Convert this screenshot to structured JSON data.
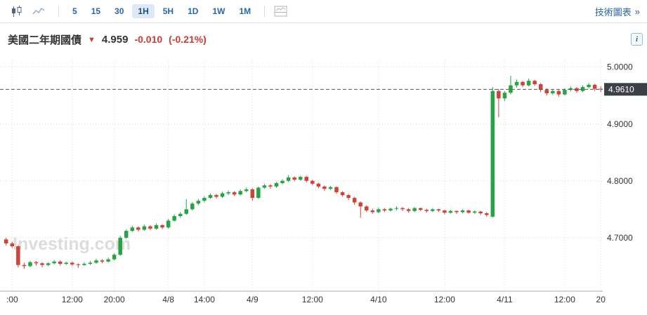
{
  "toolbar": {
    "chart_type_candle_icon": "candlestick-chart-icon",
    "chart_type_line_icon": "line-chart-icon",
    "panel_icon": "chart-panel-icon",
    "intervals": [
      {
        "label": "5",
        "selected": false
      },
      {
        "label": "15",
        "selected": false
      },
      {
        "label": "30",
        "selected": false
      },
      {
        "label": "1H",
        "selected": true
      },
      {
        "label": "5H",
        "selected": false
      },
      {
        "label": "1D",
        "selected": false
      },
      {
        "label": "1W",
        "selected": false
      },
      {
        "label": "1M",
        "selected": false
      }
    ],
    "tech_chart_link": "技術圖表",
    "tech_chart_arrow": "»"
  },
  "quote": {
    "name": "美國二年期國債",
    "direction_arrow": "▼",
    "price": "4.959",
    "change": "-0.010",
    "change_percent": "(-0.21%)",
    "info_icon": "i"
  },
  "watermark": "Investing.com",
  "chart_data": {
    "type": "candlestick",
    "title": "美國二年期國債",
    "interval": "1H",
    "grid": true,
    "ylim": [
      4.606,
      5.012
    ],
    "y_ticks": [
      {
        "value": 5.0,
        "label": "5.0000"
      },
      {
        "value": 4.9,
        "label": "4.9000"
      },
      {
        "value": 4.8,
        "label": "4.8000"
      },
      {
        "value": 4.7,
        "label": "4.7000"
      }
    ],
    "current_price": {
      "value": 4.961,
      "label": "4.9610"
    },
    "x_ticks": [
      {
        "index": 1,
        "label": ":00"
      },
      {
        "index": 11,
        "label": "12:00"
      },
      {
        "index": 18,
        "label": "20:00"
      },
      {
        "index": 27,
        "label": "4/8"
      },
      {
        "index": 33,
        "label": "14:00"
      },
      {
        "index": 41,
        "label": "4/9"
      },
      {
        "index": 51,
        "label": "12:00"
      },
      {
        "index": 62,
        "label": "4/10"
      },
      {
        "index": 73,
        "label": "12:00"
      },
      {
        "index": 83,
        "label": "4/11"
      },
      {
        "index": 93,
        "label": "12:00"
      },
      {
        "index": 99,
        "label": "20"
      }
    ],
    "colors": {
      "up": "#27a344",
      "down": "#cf4238",
      "grid": "#d9d9d9",
      "axis_text": "#333333",
      "axis_line": "#aaaaaa",
      "price_line": "#555555",
      "price_tag_bg": "#3d4147",
      "price_tag_text": "#ffffff",
      "watermark": "#dcdcdc"
    },
    "candles": [
      [
        4.697,
        4.7,
        4.686,
        4.69
      ],
      [
        4.69,
        4.693,
        4.682,
        4.685
      ],
      [
        4.685,
        4.687,
        4.648,
        4.652
      ],
      [
        4.652,
        4.656,
        4.645,
        4.65
      ],
      [
        4.65,
        4.659,
        4.648,
        4.657
      ],
      [
        4.657,
        4.659,
        4.651,
        4.655
      ],
      [
        4.655,
        4.657,
        4.648,
        4.652
      ],
      [
        4.652,
        4.657,
        4.65,
        4.655
      ],
      [
        4.655,
        4.661,
        4.653,
        4.658
      ],
      [
        4.658,
        4.66,
        4.651,
        4.654
      ],
      [
        4.654,
        4.658,
        4.652,
        4.656
      ],
      [
        4.656,
        4.658,
        4.65,
        4.653
      ],
      [
        4.653,
        4.655,
        4.647,
        4.652
      ],
      [
        4.652,
        4.657,
        4.65,
        4.654
      ],
      [
        4.654,
        4.659,
        4.652,
        4.656
      ],
      [
        4.656,
        4.663,
        4.654,
        4.66
      ],
      [
        4.66,
        4.662,
        4.655,
        4.658
      ],
      [
        4.658,
        4.665,
        4.656,
        4.662
      ],
      [
        4.662,
        4.673,
        4.66,
        4.67
      ],
      [
        4.67,
        4.703,
        4.668,
        4.7
      ],
      [
        4.7,
        4.715,
        4.698,
        4.712
      ],
      [
        4.712,
        4.721,
        4.71,
        4.718
      ],
      [
        4.718,
        4.72,
        4.711,
        4.714
      ],
      [
        4.714,
        4.723,
        4.712,
        4.72
      ],
      [
        4.72,
        4.722,
        4.713,
        4.716
      ],
      [
        4.716,
        4.725,
        4.714,
        4.722
      ],
      [
        4.722,
        4.724,
        4.715,
        4.718
      ],
      [
        4.718,
        4.733,
        4.716,
        4.73
      ],
      [
        4.73,
        4.741,
        4.728,
        4.738
      ],
      [
        4.738,
        4.745,
        4.735,
        4.742
      ],
      [
        4.742,
        4.768,
        4.74,
        4.75
      ],
      [
        4.75,
        4.763,
        4.748,
        4.76
      ],
      [
        4.76,
        4.768,
        4.757,
        4.765
      ],
      [
        4.765,
        4.773,
        4.762,
        4.77
      ],
      [
        4.77,
        4.778,
        4.768,
        4.775
      ],
      [
        4.775,
        4.777,
        4.769,
        4.772
      ],
      [
        4.772,
        4.781,
        4.77,
        4.778
      ],
      [
        4.778,
        4.783,
        4.775,
        4.78
      ],
      [
        4.78,
        4.782,
        4.773,
        4.776
      ],
      [
        4.776,
        4.785,
        4.774,
        4.782
      ],
      [
        4.782,
        4.788,
        4.78,
        4.785
      ],
      [
        4.785,
        4.787,
        4.765,
        4.77
      ],
      [
        4.77,
        4.79,
        4.768,
        4.788
      ],
      [
        4.788,
        4.795,
        4.786,
        4.792
      ],
      [
        4.792,
        4.794,
        4.786,
        4.79
      ],
      [
        4.79,
        4.798,
        4.788,
        4.796
      ],
      [
        4.796,
        4.803,
        4.794,
        4.8
      ],
      [
        4.8,
        4.81,
        4.798,
        4.806
      ],
      [
        4.806,
        4.808,
        4.799,
        4.802
      ],
      [
        4.802,
        4.809,
        4.8,
        4.807
      ],
      [
        4.807,
        4.809,
        4.797,
        4.8
      ],
      [
        4.8,
        4.802,
        4.792,
        4.795
      ],
      [
        4.795,
        4.797,
        4.787,
        4.79
      ],
      [
        4.79,
        4.792,
        4.782,
        4.786
      ],
      [
        4.786,
        4.791,
        4.784,
        4.789
      ],
      [
        4.789,
        4.79,
        4.777,
        4.78
      ],
      [
        4.78,
        4.782,
        4.772,
        4.775
      ],
      [
        4.775,
        4.777,
        4.766,
        4.77
      ],
      [
        4.77,
        4.772,
        4.758,
        4.762
      ],
      [
        4.762,
        4.764,
        4.735,
        4.755
      ],
      [
        4.755,
        4.757,
        4.745,
        4.748
      ],
      [
        4.748,
        4.751,
        4.742,
        4.745
      ],
      [
        4.745,
        4.753,
        4.743,
        4.75
      ],
      [
        4.75,
        4.752,
        4.745,
        4.748
      ],
      [
        4.748,
        4.753,
        4.746,
        4.751
      ],
      [
        4.751,
        4.755,
        4.748,
        4.752
      ],
      [
        4.752,
        4.754,
        4.747,
        4.75
      ],
      [
        4.75,
        4.752,
        4.744,
        4.747
      ],
      [
        4.747,
        4.754,
        4.745,
        4.752
      ],
      [
        4.752,
        4.753,
        4.747,
        4.749
      ],
      [
        4.749,
        4.751,
        4.744,
        4.747
      ],
      [
        4.747,
        4.752,
        4.745,
        4.75
      ],
      [
        4.75,
        4.751,
        4.745,
        4.748
      ],
      [
        4.748,
        4.749,
        4.741,
        4.744
      ],
      [
        4.744,
        4.749,
        4.742,
        4.747
      ],
      [
        4.747,
        4.748,
        4.742,
        4.745
      ],
      [
        4.745,
        4.75,
        4.743,
        4.748
      ],
      [
        4.748,
        4.749,
        4.742,
        4.744
      ],
      [
        4.744,
        4.748,
        4.742,
        4.746
      ],
      [
        4.746,
        4.747,
        4.74,
        4.743
      ],
      [
        4.743,
        4.745,
        4.737,
        4.74
      ],
      [
        4.737,
        4.965,
        4.735,
        4.958
      ],
      [
        4.958,
        4.962,
        4.912,
        4.945
      ],
      [
        4.945,
        4.958,
        4.94,
        4.955
      ],
      [
        4.955,
        4.985,
        4.952,
        4.968
      ],
      [
        4.968,
        4.978,
        4.964,
        4.974
      ],
      [
        4.974,
        4.976,
        4.965,
        4.968
      ],
      [
        4.968,
        4.98,
        4.966,
        4.976
      ],
      [
        4.976,
        4.978,
        4.967,
        4.97
      ],
      [
        4.97,
        4.972,
        4.956,
        4.96
      ],
      [
        4.96,
        4.963,
        4.95,
        4.954
      ],
      [
        4.954,
        4.961,
        4.951,
        4.958
      ],
      [
        4.958,
        4.96,
        4.948,
        4.952
      ],
      [
        4.952,
        4.963,
        4.95,
        4.96
      ],
      [
        4.96,
        4.966,
        4.957,
        4.963
      ],
      [
        4.963,
        4.965,
        4.955,
        4.958
      ],
      [
        4.958,
        4.968,
        4.956,
        4.965
      ],
      [
        4.965,
        4.972,
        4.962,
        4.969
      ],
      [
        4.969,
        4.971,
        4.958,
        4.962
      ],
      [
        4.962,
        4.966,
        4.956,
        4.961
      ]
    ]
  }
}
